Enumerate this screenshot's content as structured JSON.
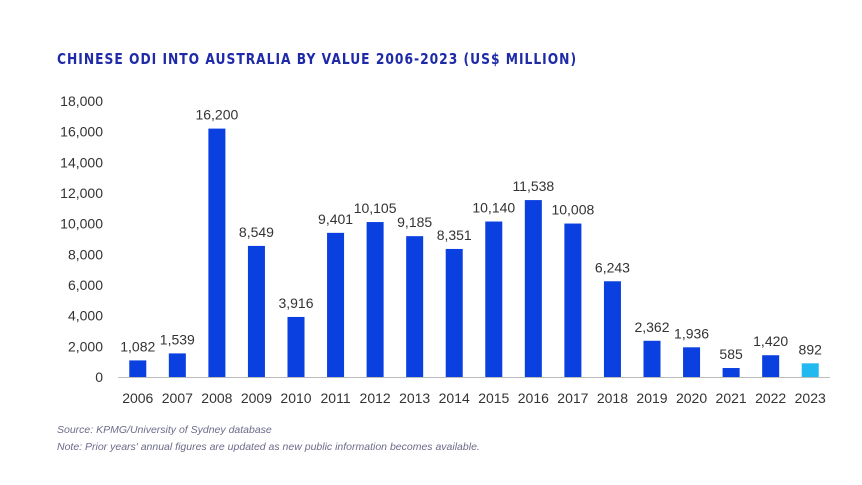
{
  "title": "CHINESE ODI INTO AUSTRALIA BY VALUE 2006-2023 (US$ MILLION)",
  "colors": {
    "bar": "#0a3fe0",
    "highlight": "#22b8f0",
    "axis": "#bbbbbb"
  },
  "chart_data": {
    "type": "bar",
    "title": "CHINESE ODI INTO AUSTRALIA BY VALUE 2006-2023 (US$ MILLION)",
    "categories": [
      "2006",
      "2007",
      "2008",
      "2009",
      "2010",
      "2011",
      "2012",
      "2013",
      "2014",
      "2015",
      "2016",
      "2017",
      "2018",
      "2019",
      "2020",
      "2021",
      "2022",
      "2023"
    ],
    "values": [
      1082,
      1539,
      16200,
      8549,
      3916,
      9401,
      10105,
      9185,
      8351,
      10140,
      11538,
      10008,
      6243,
      2362,
      1936,
      585,
      1420,
      892
    ],
    "data_labels": [
      "1,082",
      "1,539",
      "16,200",
      "8,549",
      "3,916",
      "9,401",
      "10,105",
      "9,185",
      "8,351",
      "10,140",
      "11,538",
      "10,008",
      "6,243",
      "2,362",
      "1,936",
      "585",
      "1,420",
      "892"
    ],
    "highlight_index": 17,
    "yticks": [
      0,
      2000,
      4000,
      6000,
      8000,
      10000,
      12000,
      14000,
      16000,
      18000
    ],
    "ytick_labels": [
      "0",
      "2,000",
      "4,000",
      "6,000",
      "8,000",
      "10,000",
      "12,000",
      "14,000",
      "16,000",
      "18,000"
    ],
    "ylim": [
      0,
      18000
    ],
    "xlabel": "",
    "ylabel": "",
    "grid": false
  },
  "notes": {
    "source": "Source: KPMG/University of Sydney database",
    "note": "Note: Prior years' annual figures are updated as new public information becomes available."
  }
}
